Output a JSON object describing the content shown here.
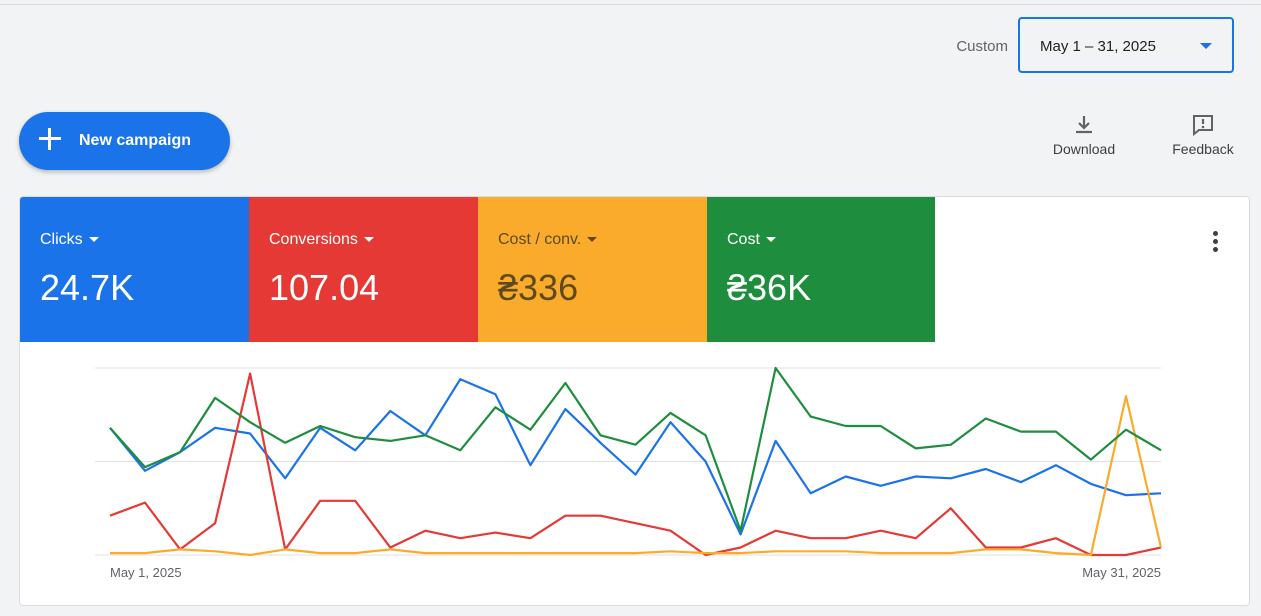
{
  "header": {
    "date_range_label": "Custom",
    "date_range_value": "May 1 – 31, 2025"
  },
  "toolbar": {
    "new_campaign_label": "New campaign",
    "download_label": "Download",
    "feedback_label": "Feedback"
  },
  "metrics": [
    {
      "name": "Clicks",
      "value": "24.7K",
      "color": "#1a73e8"
    },
    {
      "name": "Conversions",
      "value": "107.04",
      "color": "#e53935"
    },
    {
      "name": "Cost / conv.",
      "value": "₴336",
      "color": "#fbab2c"
    },
    {
      "name": "Cost",
      "value": "₴36K",
      "color": "#1e8e3e"
    }
  ],
  "chart_data": {
    "type": "line",
    "x_start_label": "May 1, 2025",
    "x_end_label": "May 31, 2025",
    "x": [
      1,
      2,
      3,
      4,
      5,
      6,
      7,
      8,
      9,
      10,
      11,
      12,
      13,
      14,
      15,
      16,
      17,
      18,
      19,
      20,
      21,
      22,
      23,
      24,
      25,
      26,
      27,
      28,
      29,
      30,
      31
    ],
    "ylim": [
      0,
      100
    ],
    "grid": true,
    "series": [
      {
        "color": "#1a73e8",
        "values": [
          68,
          45,
          55,
          68,
          65,
          41,
          68,
          56,
          77,
          64,
          94,
          86,
          48,
          78,
          60,
          43,
          71,
          50,
          11,
          61,
          33,
          42,
          37,
          42,
          41,
          46,
          39,
          48,
          38,
          32,
          33
        ]
      },
      {
        "color": "#e53935",
        "values": [
          21,
          28,
          3,
          17,
          97,
          3,
          29,
          29,
          4,
          13,
          9,
          12,
          9,
          21,
          21,
          17,
          13,
          0,
          4,
          13,
          9,
          9,
          13,
          9,
          25,
          4,
          4,
          9,
          0,
          0,
          4
        ]
      },
      {
        "color": "#fbab2c",
        "values": [
          1,
          1,
          3,
          2,
          0,
          3,
          1,
          1,
          3,
          1,
          1,
          1,
          1,
          1,
          1,
          1,
          2,
          1,
          1,
          2,
          2,
          2,
          1,
          1,
          1,
          3,
          3,
          1,
          0,
          85,
          4
        ]
      },
      {
        "color": "#1e8e3e",
        "values": [
          68,
          47,
          55,
          84,
          71,
          60,
          69,
          63,
          61,
          64,
          56,
          79,
          67,
          92,
          64,
          59,
          76,
          64,
          13,
          100,
          74,
          69,
          69,
          57,
          59,
          73,
          66,
          66,
          51,
          67,
          56
        ]
      }
    ]
  }
}
